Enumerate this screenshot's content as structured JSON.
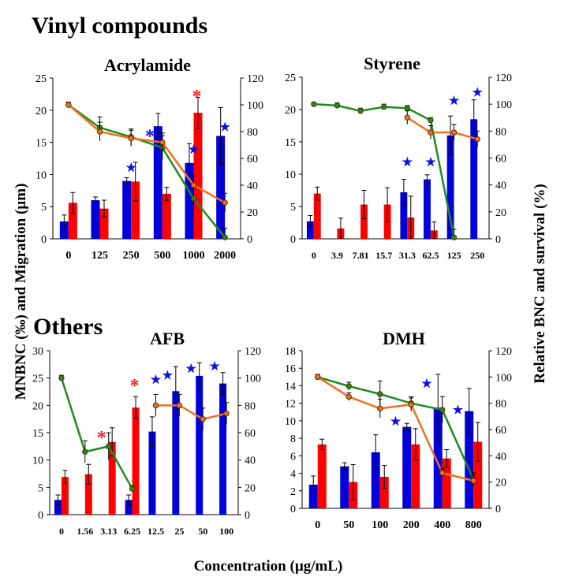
{
  "figure": {
    "section_top": "Vinyl compounds",
    "section_bottom": "Others",
    "ylabel_left": "MNBNC (‰) and Migration (µm)",
    "ylabel_right": "Relative BNC and survival (%)",
    "xlabel": "Concentration (µg/mL)"
  },
  "colors": {
    "bnc_bar": "#0000dd",
    "migration_bar": "#ff0000",
    "green_line": "#1e8c1e",
    "orange_line": "#f07020",
    "blue_star": "#1010dd",
    "red_asterisk": "#ff2020"
  },
  "chart_data": [
    {
      "type": "bar",
      "title": "Acrylamide",
      "categories": [
        "0",
        "125",
        "250",
        "500",
        "1000",
        "2000"
      ],
      "ylim_left": [
        0,
        25
      ],
      "yticks_left": [
        0,
        5,
        10,
        15,
        20,
        25
      ],
      "ylim_right": [
        0,
        120
      ],
      "yticks_right": [
        0,
        20,
        40,
        60,
        80,
        100,
        120
      ],
      "series": [
        {
          "kind": "bar",
          "color": "bnc_bar",
          "values": [
            2.7,
            6.0,
            9.0,
            17.5,
            11.8,
            16.0
          ],
          "errors": [
            1.0,
            0.5,
            0.5,
            2.0,
            3.0,
            4.4
          ]
        },
        {
          "kind": "bar",
          "color": "migration_bar",
          "values": [
            5.6,
            4.7,
            8.9,
            7.0,
            19.6,
            null
          ],
          "errors": [
            1.6,
            1.3,
            3.0,
            1.0,
            2.4,
            0
          ]
        },
        {
          "kind": "line",
          "color": "green_line",
          "axis": "right",
          "values": [
            100,
            83,
            76,
            68,
            30,
            1
          ],
          "errors": [
            2,
            8,
            6,
            9,
            8,
            7
          ]
        },
        {
          "kind": "line",
          "color": "orange_line",
          "axis": "right",
          "values": [
            100,
            80,
            75,
            72,
            40,
            27
          ],
          "errors": [
            2,
            7,
            6,
            7,
            7,
            7
          ]
        }
      ],
      "annotations": [
        {
          "symbol": "★",
          "color": "blue_star",
          "category": 2,
          "value": 10.5
        },
        {
          "symbol": "★",
          "color": "blue_star",
          "category": 4,
          "value": 13.3
        },
        {
          "symbol": "★",
          "color": "blue_star",
          "category": 5,
          "value": 16.8
        },
        {
          "symbol": "*",
          "color": "blue_star",
          "category": 2.6,
          "value": 15.0
        },
        {
          "symbol": "*",
          "color": "red_asterisk",
          "category": 4.1,
          "value": 21.2
        }
      ]
    },
    {
      "type": "bar",
      "title": "Styrene",
      "categories": [
        "0",
        "3.9",
        "7.81",
        "15.7",
        "31.3",
        "62.5",
        "125",
        "250"
      ],
      "ylim_left": [
        0,
        25
      ],
      "yticks_left": [
        0,
        5,
        10,
        15,
        20,
        25
      ],
      "ylim_right": [
        0,
        120
      ],
      "yticks_right": [
        0,
        20,
        40,
        60,
        80,
        100,
        120
      ],
      "series": [
        {
          "kind": "bar",
          "color": "bnc_bar",
          "values": [
            2.7,
            null,
            null,
            null,
            7.2,
            9.2,
            16.0,
            18.5
          ],
          "errors": [
            0.9,
            0,
            0,
            0,
            2.0,
            0.7,
            3.0,
            3.0
          ]
        },
        {
          "kind": "bar",
          "color": "migration_bar",
          "values": [
            7.0,
            1.6,
            5.3,
            5.3,
            3.3,
            1.3,
            null,
            null
          ],
          "errors": [
            1.0,
            1.6,
            2.2,
            2.6,
            3.3,
            1.3,
            0,
            0
          ]
        },
        {
          "kind": "line",
          "color": "green_line",
          "axis": "right",
          "values": [
            100,
            99,
            95,
            98,
            97,
            88,
            1,
            null
          ],
          "errors": [
            1,
            2,
            2,
            2,
            2,
            2,
            6,
            0
          ]
        },
        {
          "kind": "line",
          "color": "orange_line",
          "axis": "right",
          "values": [
            null,
            null,
            null,
            null,
            90,
            79,
            79,
            74
          ],
          "errors": [
            0,
            0,
            0,
            0,
            5,
            5,
            6,
            6
          ]
        }
      ],
      "annotations": [
        {
          "symbol": "★",
          "color": "blue_star",
          "category": 4,
          "value": 11.3
        },
        {
          "symbol": "★",
          "color": "blue_star",
          "category": 5,
          "value": 11.3
        },
        {
          "symbol": "★",
          "color": "blue_star",
          "category": 6,
          "value": 20.8
        },
        {
          "symbol": "★",
          "color": "blue_star",
          "category": 7,
          "value": 22.1
        }
      ]
    },
    {
      "type": "bar",
      "title": "AFB",
      "categories": [
        "0",
        "1.56",
        "3.13",
        "6.25",
        "12.5",
        "25",
        "50",
        "100"
      ],
      "ylim_left": [
        0,
        30
      ],
      "yticks_left": [
        0,
        5,
        10,
        15,
        20,
        25,
        30
      ],
      "ylim_right": [
        0,
        120
      ],
      "yticks_right": [
        0,
        20,
        40,
        60,
        80,
        100,
        120
      ],
      "series": [
        {
          "kind": "bar",
          "color": "bnc_bar",
          "values": [
            2.7,
            null,
            null,
            2.7,
            15.2,
            22.6,
            25.4,
            24.0
          ],
          "errors": [
            0.9,
            0,
            0,
            0.9,
            2.7,
            4.5,
            2.4,
            2.0
          ]
        },
        {
          "kind": "bar",
          "color": "migration_bar",
          "values": [
            6.9,
            7.4,
            13.3,
            19.6,
            null,
            null,
            null,
            null
          ],
          "errors": [
            1.2,
            1.8,
            2.6,
            2.0,
            0,
            0,
            0,
            0
          ]
        },
        {
          "kind": "line",
          "color": "green_line",
          "axis": "right",
          "values": [
            100,
            46,
            50,
            19,
            null,
            null,
            null,
            null
          ],
          "errors": [
            2,
            8,
            10,
            2,
            0,
            0,
            0,
            0
          ]
        },
        {
          "kind": "line",
          "color": "orange_line",
          "axis": "right",
          "values": [
            null,
            null,
            null,
            null,
            80,
            80,
            70,
            74
          ],
          "errors": [
            0,
            0,
            0,
            0,
            8,
            8,
            8,
            8
          ]
        }
      ],
      "annotations": [
        {
          "symbol": "*",
          "color": "red_asterisk",
          "category": 1.7,
          "value": 13.0
        },
        {
          "symbol": "*",
          "color": "red_asterisk",
          "category": 3.1,
          "value": 22.5
        },
        {
          "symbol": "★",
          "color": "blue_star",
          "category": 4.0,
          "value": 24.0
        },
        {
          "symbol": "★",
          "color": "blue_star",
          "category": 4.5,
          "value": 24.8
        },
        {
          "symbol": "★",
          "color": "blue_star",
          "category": 5.5,
          "value": 26.0
        },
        {
          "symbol": "★",
          "color": "blue_star",
          "category": 6.5,
          "value": 26.5
        }
      ]
    },
    {
      "type": "bar",
      "title": "DMH",
      "categories": [
        "0",
        "50",
        "100",
        "200",
        "400",
        "800"
      ],
      "ylim_left": [
        0,
        18
      ],
      "yticks_left": [
        0,
        2,
        4,
        6,
        8,
        10,
        12,
        14,
        16,
        18
      ],
      "ylim_right": [
        0,
        120
      ],
      "yticks_right": [
        0,
        20,
        40,
        60,
        80,
        100,
        120
      ],
      "series": [
        {
          "kind": "bar",
          "color": "bnc_bar",
          "values": [
            2.7,
            4.8,
            6.4,
            9.3,
            11.5,
            11.1
          ],
          "errors": [
            1.0,
            0.4,
            2.0,
            0.4,
            3.8,
            2.6
          ]
        },
        {
          "kind": "bar",
          "color": "migration_bar",
          "values": [
            7.3,
            3.0,
            3.6,
            7.3,
            5.7,
            7.6
          ],
          "errors": [
            0.6,
            2.0,
            1.3,
            1.8,
            1.0,
            2.2
          ]
        },
        {
          "kind": "line",
          "color": "green_line",
          "axis": "right",
          "values": [
            100,
            93,
            87,
            80,
            75,
            22
          ],
          "errors": [
            2,
            3,
            10,
            5,
            10,
            5
          ]
        },
        {
          "kind": "line",
          "color": "orange_line",
          "axis": "right",
          "values": [
            100,
            85,
            76,
            79,
            27,
            21
          ],
          "errors": [
            2,
            3,
            7,
            5,
            3,
            4
          ]
        }
      ],
      "annotations": [
        {
          "symbol": "★",
          "color": "blue_star",
          "category": 2.5,
          "value": 9.5
        },
        {
          "symbol": "★",
          "color": "blue_star",
          "category": 3.5,
          "value": 13.8
        },
        {
          "symbol": "★",
          "color": "blue_star",
          "category": 4.5,
          "value": 10.8
        }
      ]
    }
  ]
}
